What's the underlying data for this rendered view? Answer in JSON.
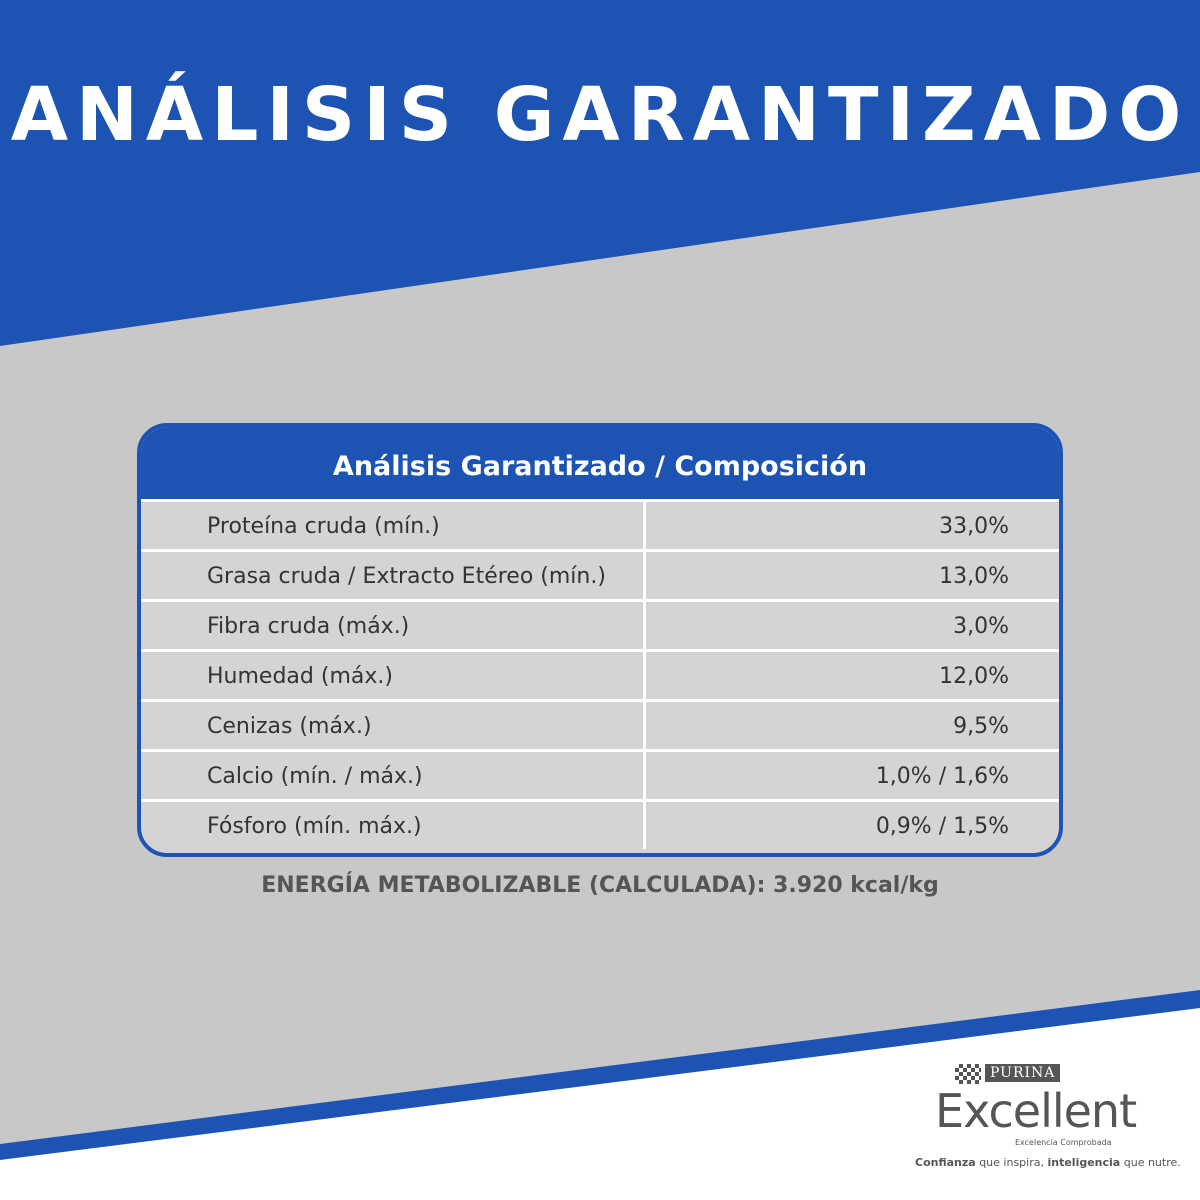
{
  "title": "ANÁLISIS GARANTIZADO",
  "table": {
    "header": "Análisis Garantizado / Composición",
    "rows": [
      [
        "Proteína cruda (mín.)",
        "33,0%"
      ],
      [
        "Grasa cruda / Extracto Etéreo (mín.)",
        "13,0%"
      ],
      [
        "Fibra cruda (máx.)",
        "3,0%"
      ],
      [
        "Humedad (máx.)",
        "12,0%"
      ],
      [
        "Cenizas (máx.)",
        "9,5%"
      ],
      [
        "Calcio (mín. / máx.)",
        "1,0% / 1,6%"
      ],
      [
        "Fósforo (mín. máx.)",
        "0,9% / 1,5%"
      ]
    ]
  },
  "energy": "ENERGÍA METABOLIZABLE (CALCULADA): 3.920 kcal/kg",
  "brand": {
    "maker": "PURINA",
    "name": "Excellent",
    "slogan": "Excelencia Comprobada",
    "tagline": [
      "Confianza",
      "que inspira,",
      "inteligencia",
      "que nutre."
    ]
  }
}
